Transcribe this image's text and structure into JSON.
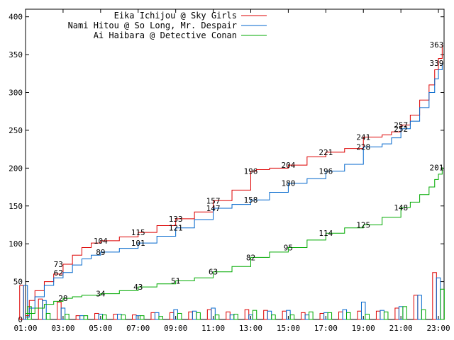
{
  "chart_data": {
    "type": "line",
    "x_ticks": [
      "01:00",
      "03:00",
      "05:00",
      "07:00",
      "09:00",
      "11:00",
      "13:00",
      "15:00",
      "17:00",
      "19:00",
      "21:00",
      "23:00"
    ],
    "ylim": [
      0,
      410
    ],
    "y_ticks": [
      0,
      50,
      100,
      150,
      200,
      250,
      300,
      350,
      400
    ],
    "grid": false,
    "legend_position": "top-left",
    "series": [
      {
        "name": "Eika Ichijou @ Sky Girls",
        "color": "#dd0000",
        "x": [
          1.0,
          1.2,
          1.5,
          2.0,
          2.5,
          3.0,
          3.5,
          4.0,
          4.5,
          5.0,
          6.0,
          7.0,
          8.0,
          9.0,
          10.0,
          11.0,
          12.0,
          13.0,
          13.3,
          14.0,
          15.0,
          16.0,
          17.0,
          18.0,
          19.0,
          20.0,
          20.5,
          21.0,
          21.5,
          22.0,
          22.5,
          22.8,
          23.0,
          23.2
        ],
        "y": [
          5,
          25,
          38,
          50,
          60,
          73,
          85,
          95,
          101,
          104,
          109,
          115,
          124,
          133,
          142,
          157,
          171,
          196,
          198,
          200,
          204,
          215,
          221,
          226,
          241,
          244,
          248,
          257,
          270,
          290,
          310,
          330,
          345,
          363
        ],
        "labels": [
          {
            "x": 2.75,
            "y": 73,
            "text": "73"
          },
          {
            "x": 5.0,
            "y": 104,
            "text": "104"
          },
          {
            "x": 7.0,
            "y": 115,
            "text": "115"
          },
          {
            "x": 9.0,
            "y": 133,
            "text": "133"
          },
          {
            "x": 11.0,
            "y": 157,
            "text": "157"
          },
          {
            "x": 13.0,
            "y": 196,
            "text": "196"
          },
          {
            "x": 15.0,
            "y": 204,
            "text": "204"
          },
          {
            "x": 17.0,
            "y": 221,
            "text": "221"
          },
          {
            "x": 19.0,
            "y": 241,
            "text": "241"
          },
          {
            "x": 21.0,
            "y": 257,
            "text": "257"
          },
          {
            "x": 22.9,
            "y": 363,
            "text": "363"
          }
        ]
      },
      {
        "name": "Nami Hitou @ So Long, Mr. Despair",
        "color": "#0066cc",
        "x": [
          1.0,
          1.2,
          1.5,
          2.0,
          2.5,
          3.0,
          3.5,
          4.0,
          4.5,
          5.0,
          6.0,
          7.0,
          8.0,
          9.0,
          10.0,
          11.0,
          12.0,
          13.0,
          14.0,
          15.0,
          16.0,
          17.0,
          18.0,
          19.0,
          20.0,
          20.5,
          21.0,
          21.5,
          22.0,
          22.5,
          22.8,
          23.0,
          23.2
        ],
        "y": [
          3,
          15,
          30,
          45,
          55,
          62,
          72,
          80,
          85,
          89,
          94,
          101,
          110,
          121,
          132,
          147,
          152,
          158,
          168,
          180,
          186,
          196,
          205,
          228,
          232,
          240,
          252,
          262,
          280,
          300,
          318,
          330,
          339
        ],
        "labels": [
          {
            "x": 2.75,
            "y": 62,
            "text": "62"
          },
          {
            "x": 5.0,
            "y": 89,
            "text": "89"
          },
          {
            "x": 7.0,
            "y": 101,
            "text": "101"
          },
          {
            "x": 9.0,
            "y": 121,
            "text": "121"
          },
          {
            "x": 11.0,
            "y": 147,
            "text": "147"
          },
          {
            "x": 13.0,
            "y": 158,
            "text": "158"
          },
          {
            "x": 15.0,
            "y": 180,
            "text": "180"
          },
          {
            "x": 17.0,
            "y": 196,
            "text": "196"
          },
          {
            "x": 19.0,
            "y": 228,
            "text": "228"
          },
          {
            "x": 21.0,
            "y": 252,
            "text": "252"
          },
          {
            "x": 22.9,
            "y": 339,
            "text": "339"
          }
        ]
      },
      {
        "name": "Ai Haibara @ Detective Conan",
        "color": "#00aa00",
        "x": [
          1.0,
          1.5,
          2.0,
          2.5,
          3.0,
          3.5,
          4.0,
          5.0,
          6.0,
          7.0,
          8.0,
          9.0,
          10.0,
          11.0,
          12.0,
          13.0,
          14.0,
          15.0,
          16.0,
          17.0,
          18.0,
          19.0,
          20.0,
          21.0,
          21.5,
          22.0,
          22.5,
          22.8,
          23.0,
          23.2
        ],
        "y": [
          8,
          15,
          20,
          24,
          28,
          30,
          32,
          34,
          38,
          43,
          47,
          51,
          55,
          63,
          70,
          82,
          89,
          95,
          105,
          114,
          121,
          125,
          135,
          148,
          155,
          165,
          175,
          185,
          192,
          201
        ],
        "labels": [
          {
            "x": 3.0,
            "y": 28,
            "text": "28"
          },
          {
            "x": 5.0,
            "y": 34,
            "text": "34"
          },
          {
            "x": 7.0,
            "y": 43,
            "text": "43"
          },
          {
            "x": 9.0,
            "y": 51,
            "text": "51"
          },
          {
            "x": 11.0,
            "y": 63,
            "text": "63"
          },
          {
            "x": 13.0,
            "y": 82,
            "text": "82"
          },
          {
            "x": 15.0,
            "y": 95,
            "text": "95"
          },
          {
            "x": 17.0,
            "y": 114,
            "text": "114"
          },
          {
            "x": 19.0,
            "y": 125,
            "text": "125"
          },
          {
            "x": 21.0,
            "y": 148,
            "text": "148"
          },
          {
            "x": 22.9,
            "y": 201,
            "text": "201"
          }
        ]
      }
    ],
    "bars": {
      "hours": [
        1,
        2,
        3,
        4,
        5,
        6,
        7,
        8,
        9,
        10,
        11,
        12,
        13,
        14,
        15,
        16,
        17,
        18,
        19,
        20,
        21,
        22,
        23
      ],
      "series_values": [
        [
          45,
          27,
          23,
          5,
          8,
          7,
          6,
          9,
          9,
          10,
          13,
          10,
          13,
          12,
          11,
          9,
          8,
          10,
          11,
          11,
          15,
          32,
          62
        ],
        [
          45,
          25,
          15,
          5,
          7,
          7,
          5,
          9,
          13,
          11,
          15,
          6,
          6,
          11,
          12,
          6,
          9,
          13,
          23,
          12,
          17,
          32,
          55
        ],
        [
          17,
          8,
          7,
          5,
          6,
          6,
          5,
          4,
          8,
          9,
          6,
          7,
          12,
          6,
          6,
          10,
          9,
          9,
          7,
          10,
          17,
          13,
          40
        ]
      ]
    }
  }
}
